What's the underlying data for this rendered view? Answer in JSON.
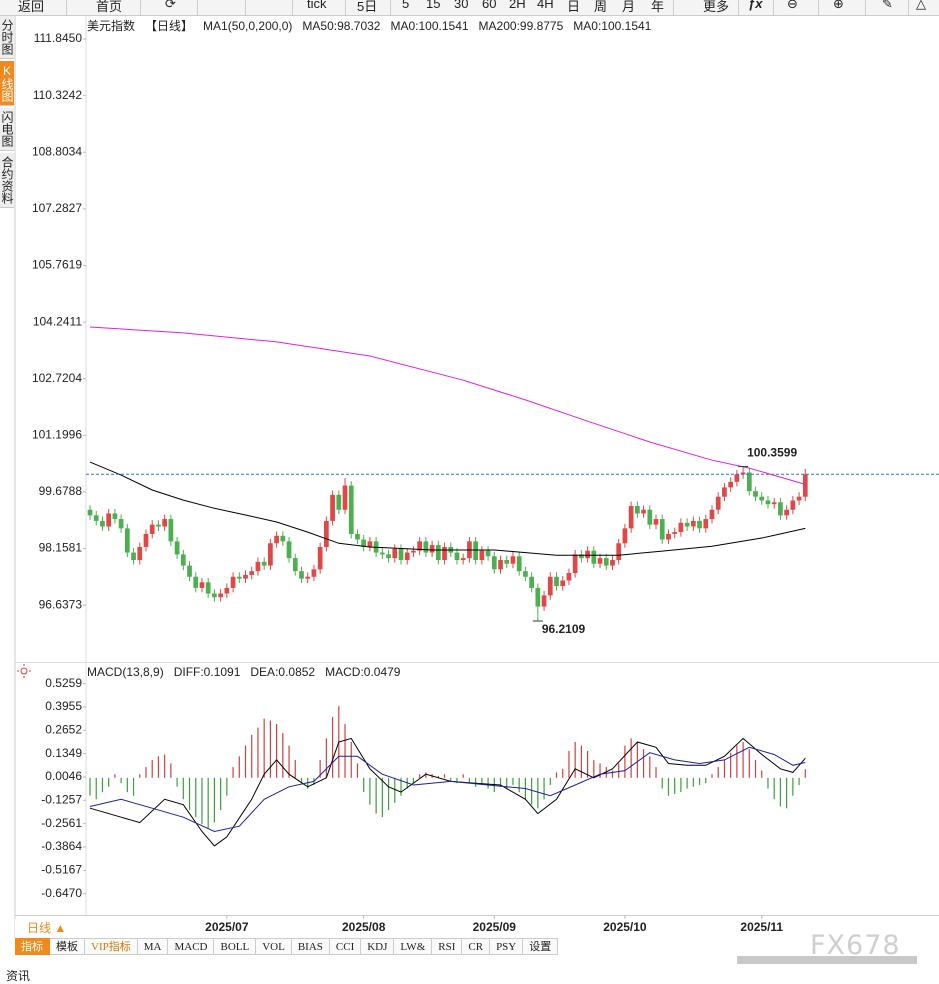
{
  "toolbar": [
    "返回",
    "首页",
    "tick",
    "5日",
    "5",
    "15",
    "30",
    "60",
    "2H",
    "4H",
    "日",
    "周",
    "月",
    "年",
    "更多",
    "ƒx"
  ],
  "sidebar": [
    "分时图",
    "K线图",
    "闪电图",
    "合约资料"
  ],
  "chart_data": [
    {
      "type": "candlestick",
      "title": "美元指数",
      "period": "【日线】",
      "indicator": "MA1(50,0,200,0)",
      "up_color": "#e04848",
      "down_color": "#4caf50",
      "last_line_color": "#3a6fd8",
      "open": [
        99.2,
        99.05,
        98.9,
        98.75,
        99.1,
        98.95,
        98.7,
        98.05,
        97.85,
        98.2,
        98.55,
        98.8,
        98.75,
        98.95,
        98.35,
        98.0,
        97.7,
        97.4,
        97.1,
        97.25,
        96.95,
        96.85,
        96.95,
        97.1,
        97.4,
        97.35,
        97.45,
        97.55,
        97.8,
        97.7,
        98.3,
        98.5,
        98.35,
        97.9,
        97.55,
        97.35,
        97.4,
        97.6,
        98.2,
        98.9,
        99.6,
        99.2,
        99.85,
        98.55,
        98.4,
        98.2,
        98.35,
        98.05,
        98.0,
        97.9,
        98.15,
        97.85,
        98.05,
        98.1,
        98.35,
        98.05,
        98.25,
        97.85,
        98.2,
        98.05,
        97.85,
        97.9,
        98.35,
        97.85,
        98.1,
        97.95,
        97.6,
        97.85,
        97.75,
        97.95,
        97.55,
        97.4,
        97.1,
        96.6,
        96.9,
        97.4,
        97.15,
        97.3,
        97.5,
        98.0,
        97.9,
        98.1,
        97.75,
        97.9,
        97.7,
        97.85,
        98.3,
        98.7,
        99.3,
        99.1,
        99.2,
        98.8,
        98.95,
        98.4,
        98.55,
        98.6,
        98.85,
        98.75,
        98.9,
        98.7,
        98.95,
        99.2,
        99.55,
        99.8,
        99.95,
        100.15,
        100.2,
        99.7,
        99.55,
        99.45,
        99.35,
        99.4,
        99.05,
        99.2,
        99.45,
        99.55
      ],
      "high": [
        99.32,
        99.17,
        99.02,
        99.22,
        99.22,
        99.07,
        98.82,
        98.17,
        98.32,
        98.67,
        98.92,
        98.92,
        99.07,
        99.07,
        98.47,
        98.12,
        97.82,
        97.52,
        97.37,
        97.37,
        97.07,
        97.07,
        97.22,
        97.52,
        97.52,
        97.57,
        97.67,
        97.92,
        97.92,
        98.42,
        98.62,
        98.62,
        98.47,
        98.02,
        97.67,
        97.52,
        97.72,
        98.32,
        99.02,
        99.72,
        99.72,
        100.05,
        99.97,
        98.67,
        98.52,
        98.47,
        98.47,
        98.17,
        98.12,
        98.27,
        98.27,
        98.17,
        98.22,
        98.47,
        98.47,
        98.37,
        98.37,
        98.32,
        98.32,
        98.17,
        98.02,
        98.47,
        98.47,
        98.22,
        98.22,
        98.07,
        97.97,
        97.97,
        98.07,
        98.07,
        97.67,
        97.52,
        97.22,
        97.02,
        97.52,
        97.52,
        97.42,
        97.62,
        98.12,
        98.12,
        98.22,
        98.22,
        98.02,
        98.02,
        97.97,
        98.42,
        98.82,
        99.42,
        99.42,
        99.32,
        99.32,
        99.07,
        99.07,
        98.67,
        98.72,
        98.97,
        98.97,
        99.02,
        99.02,
        99.07,
        99.32,
        99.67,
        99.92,
        100.07,
        100.27,
        100.3599,
        100.32,
        99.82,
        99.67,
        99.57,
        99.52,
        99.52,
        99.32,
        99.57,
        99.67,
        100.3
      ],
      "low": [
        98.93,
        98.78,
        98.63,
        98.63,
        98.83,
        98.58,
        97.93,
        97.73,
        97.73,
        98.08,
        98.43,
        98.63,
        98.63,
        98.23,
        97.88,
        97.58,
        97.28,
        96.98,
        96.98,
        96.83,
        96.73,
        96.73,
        96.83,
        96.98,
        97.23,
        97.23,
        97.33,
        97.43,
        97.58,
        97.58,
        98.18,
        98.23,
        97.78,
        97.43,
        97.23,
        97.23,
        97.28,
        97.48,
        98.08,
        98.78,
        99.08,
        99.08,
        98.43,
        98.28,
        98.08,
        98.08,
        97.93,
        97.88,
        97.78,
        97.78,
        97.73,
        97.73,
        97.93,
        97.98,
        97.93,
        97.93,
        97.73,
        97.73,
        97.93,
        97.73,
        97.73,
        97.78,
        97.73,
        97.73,
        97.83,
        97.48,
        97.48,
        97.63,
        97.63,
        97.43,
        97.28,
        96.98,
        96.2109,
        96.48,
        96.78,
        97.03,
        97.03,
        97.18,
        97.38,
        97.78,
        97.78,
        97.63,
        97.63,
        97.58,
        97.58,
        97.73,
        98.18,
        98.58,
        98.98,
        98.98,
        98.68,
        98.68,
        98.28,
        98.28,
        98.43,
        98.48,
        98.63,
        98.63,
        98.58,
        98.58,
        98.83,
        99.08,
        99.43,
        99.68,
        99.83,
        100.03,
        99.58,
        99.43,
        99.33,
        99.23,
        99.23,
        98.93,
        98.93,
        99.08,
        99.33,
        99.43
      ],
      "close": [
        99.05,
        98.9,
        98.75,
        99.1,
        98.95,
        98.7,
        98.05,
        97.85,
        98.2,
        98.55,
        98.8,
        98.75,
        98.95,
        98.35,
        98.0,
        97.7,
        97.4,
        97.1,
        97.25,
        96.95,
        96.85,
        96.95,
        97.1,
        97.4,
        97.35,
        97.45,
        97.55,
        97.8,
        97.7,
        98.3,
        98.5,
        98.35,
        97.9,
        97.55,
        97.35,
        97.4,
        97.6,
        98.2,
        98.9,
        99.6,
        99.2,
        99.85,
        98.55,
        98.4,
        98.2,
        98.35,
        98.05,
        98.0,
        97.9,
        98.15,
        97.85,
        98.05,
        98.1,
        98.35,
        98.05,
        98.25,
        97.85,
        98.2,
        98.05,
        97.85,
        97.9,
        98.35,
        97.85,
        98.1,
        97.95,
        97.6,
        97.85,
        97.75,
        97.95,
        97.55,
        97.4,
        97.1,
        96.6,
        96.9,
        97.4,
        97.15,
        97.3,
        97.5,
        98.0,
        97.9,
        98.1,
        97.75,
        97.9,
        97.7,
        97.85,
        98.3,
        98.7,
        99.3,
        99.1,
        99.2,
        98.8,
        98.95,
        98.4,
        98.55,
        98.6,
        98.85,
        98.75,
        98.9,
        98.7,
        98.95,
        99.2,
        99.55,
        99.8,
        99.95,
        100.15,
        100.2,
        99.7,
        99.55,
        99.45,
        99.35,
        99.4,
        99.05,
        99.2,
        99.45,
        99.55,
        100.1541
      ],
      "xlim": [
        -0.5,
        115.5
      ],
      "ylim": [
        95.11,
        112.41
      ],
      "yticks": [
        {
          "value": 111.845,
          "label": "111.8450"
        },
        110.3242,
        108.8034,
        107.2827,
        105.7619,
        104.2411,
        102.7204,
        101.1996,
        99.6788,
        98.1581,
        96.6373
      ],
      "series": [
        {
          "name": "MA50:98.7032",
          "color": "#000000",
          "x": [
            0,
            5,
            10,
            15,
            20,
            25,
            30,
            35,
            40,
            45,
            55,
            65,
            75,
            85,
            92,
            100,
            108,
            115
          ],
          "values": [
            100.48,
            100.13,
            99.73,
            99.46,
            99.24,
            99.06,
            98.87,
            98.6,
            98.3,
            98.2,
            98.12,
            98.12,
            97.98,
            97.98,
            98.09,
            98.22,
            98.44,
            98.7
          ]
        },
        {
          "name": "MA200:99.8775",
          "color": "#e020e0",
          "x": [
            0,
            15,
            30,
            45,
            60,
            70,
            80,
            90,
            100,
            106,
            115
          ],
          "values": [
            104.11,
            103.95,
            103.71,
            103.33,
            102.68,
            102.15,
            101.58,
            101.02,
            100.53,
            100.32,
            99.88
          ]
        }
      ],
      "legend_extra": [
        {
          "name": "MA0:100.1541",
          "color": "#1f1f9e"
        },
        {
          "name": "MA0:100.1541",
          "color": "#f0a030"
        }
      ]
    },
    {
      "type": "macd",
      "title": "MACD(13,8,9)",
      "up_color": "#d04040",
      "down_color": "#3aa03a",
      "values": [
        -0.1,
        -0.12,
        -0.08,
        -0.05,
        0.02,
        -0.03,
        -0.08,
        -0.1,
        0.02,
        0.06,
        0.1,
        0.12,
        0.13,
        0.08,
        -0.05,
        -0.12,
        -0.18,
        -0.22,
        -0.26,
        -0.28,
        -0.25,
        -0.18,
        -0.1,
        0.06,
        0.12,
        0.18,
        0.24,
        0.28,
        0.33,
        0.32,
        0.3,
        0.25,
        0.18,
        0.1,
        -0.03,
        -0.06,
        -0.04,
        0.1,
        0.22,
        0.34,
        0.4,
        0.3,
        0.2,
        0.08,
        -0.08,
        -0.15,
        -0.2,
        -0.22,
        -0.18,
        -0.14,
        -0.1,
        -0.06,
        -0.03,
        0.02,
        0.03,
        0.02,
        0.01,
        0.02,
        -0.02,
        -0.03,
        0.02,
        -0.03,
        -0.05,
        -0.04,
        -0.06,
        -0.08,
        -0.05,
        -0.06,
        -0.04,
        -0.08,
        -0.12,
        -0.15,
        -0.17,
        -0.12,
        -0.04,
        0.03,
        0.05,
        0.15,
        0.2,
        0.18,
        0.15,
        0.1,
        0.08,
        0.06,
        0.04,
        0.08,
        0.18,
        0.22,
        0.2,
        0.16,
        0.12,
        0.06,
        -0.06,
        -0.1,
        -0.09,
        -0.08,
        -0.06,
        -0.05,
        -0.04,
        -0.03,
        0.02,
        0.06,
        0.1,
        0.14,
        0.18,
        0.2,
        0.16,
        0.1,
        0.04,
        -0.06,
        -0.12,
        -0.16,
        -0.17,
        -0.1,
        -0.04,
        0.0479
      ],
      "xlim": [
        -0.5,
        115.5
      ],
      "xticks": [
        {
          "value": 22,
          "label": "2025/07"
        },
        {
          "value": 44,
          "label": "2025/08"
        },
        {
          "value": 65,
          "label": "2025/09"
        },
        {
          "value": 86,
          "label": "2025/10"
        },
        {
          "value": 108,
          "label": "2025/11"
        }
      ],
      "ylim": [
        -0.766,
        0.613
      ],
      "yticks": [
        0.5259,
        0.3955,
        0.2652,
        0.1349,
        0.0046,
        -0.1257,
        -0.2561,
        -0.3864,
        -0.5167,
        {
          "value": -0.647,
          "label": "-0.6470"
        }
      ],
      "series": [
        {
          "name": "DIFF:0.1091",
          "color": "#000000",
          "x": [
            0,
            5,
            8,
            12,
            15,
            18,
            20,
            22,
            26,
            28,
            30,
            32,
            35,
            38,
            40,
            42,
            45,
            48,
            50,
            54,
            58,
            62,
            66,
            70,
            72,
            75,
            78,
            81,
            84,
            88,
            91,
            93,
            96,
            99,
            102,
            105,
            108,
            111,
            113,
            115
          ],
          "values": [
            -0.17,
            -0.22,
            -0.25,
            -0.12,
            -0.15,
            -0.3,
            -0.38,
            -0.33,
            -0.12,
            0.02,
            0.1,
            0.02,
            -0.05,
            0,
            0.2,
            0.22,
            0.05,
            -0.05,
            -0.08,
            0.02,
            -0.02,
            -0.03,
            -0.04,
            -0.12,
            -0.2,
            -0.12,
            0.05,
            0,
            0.05,
            0.2,
            0.17,
            0.08,
            0.07,
            0.07,
            0.12,
            0.22,
            0.13,
            0.05,
            0.03,
            0.1091
          ]
        },
        {
          "name": "DEA:0.0852",
          "color": "#1f1f9e",
          "x": [
            0,
            5,
            10,
            15,
            20,
            24,
            28,
            32,
            36,
            40,
            43,
            47,
            52,
            58,
            64,
            70,
            74,
            78,
            82,
            86,
            90,
            94,
            98,
            102,
            106,
            110,
            113,
            115
          ],
          "values": [
            -0.16,
            -0.12,
            -0.17,
            -0.22,
            -0.3,
            -0.27,
            -0.12,
            -0.05,
            -0.02,
            0.12,
            0.12,
            0.02,
            -0.04,
            -0.02,
            -0.04,
            -0.06,
            -0.1,
            -0.04,
            0.02,
            0.04,
            0.14,
            0.1,
            0.08,
            0.1,
            0.17,
            0.13,
            0.07,
            0.0852
          ]
        }
      ],
      "legend_extra": [
        {
          "name": "MACD:0.0479",
          "color": "#e020e0"
        }
      ]
    }
  ],
  "period_button": "日线 ▲",
  "tabs": [
    "指标",
    "模板",
    "VIP指标",
    "MA",
    "MACD",
    "BOLL",
    "VOL",
    "BIAS",
    "CCI",
    "KDJ",
    "LW&",
    "RSI",
    "CR",
    "PSY",
    "设置"
  ],
  "footer": "资讯",
  "watermark": "FX678"
}
